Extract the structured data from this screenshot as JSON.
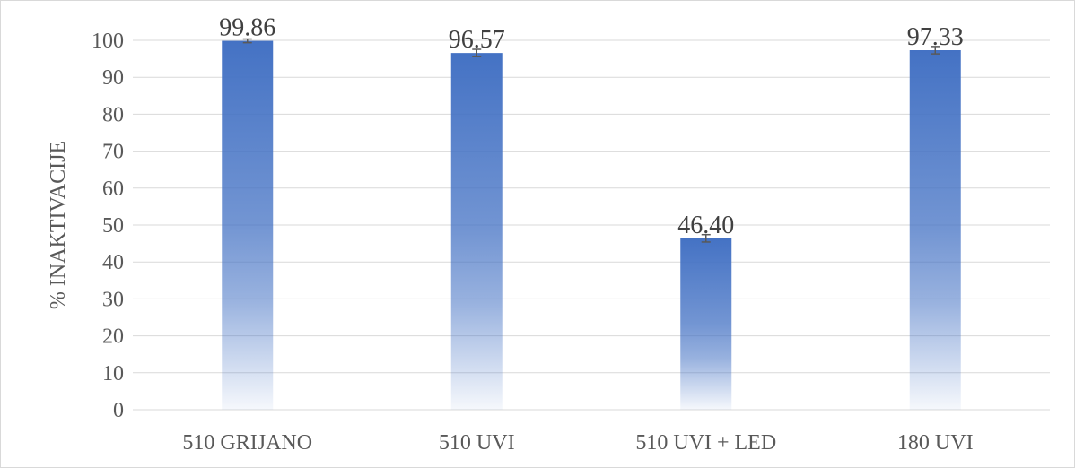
{
  "chart_data": {
    "type": "bar",
    "categories": [
      "510 GRIJANO",
      "510 UVI",
      "510 UVI + LED",
      "180 UVI"
    ],
    "values": [
      99.86,
      96.57,
      46.4,
      97.33
    ],
    "data_labels": [
      "99.86",
      "96.57",
      "46.40",
      "97.33"
    ],
    "error": [
      0.5,
      1.0,
      1.0,
      1.0
    ],
    "ylabel": "% INAKTIVACIJE",
    "xlabel": "",
    "ylim": [
      0,
      100
    ],
    "yticks": [
      0,
      10,
      20,
      30,
      40,
      50,
      60,
      70,
      80,
      90,
      100
    ],
    "grid": true,
    "bar_color": "#4472c4"
  }
}
